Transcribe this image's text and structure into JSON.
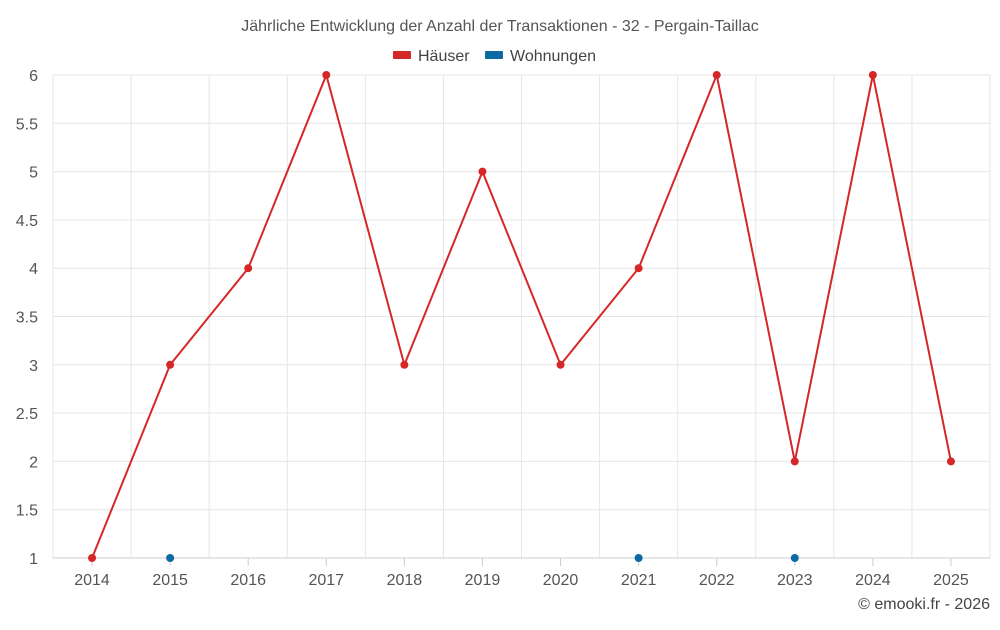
{
  "chart_data": {
    "type": "line",
    "title": "Jährliche Entwicklung der Anzahl der Transaktionen - 32 - Pergain-Taillac",
    "x": [
      "2014",
      "2015",
      "2016",
      "2017",
      "2018",
      "2019",
      "2020",
      "2021",
      "2022",
      "2023",
      "2024",
      "2025"
    ],
    "series": [
      {
        "name": "Häuser",
        "color": "#d62728",
        "values": [
          1,
          3,
          4,
          6,
          3,
          5,
          3,
          4,
          6,
          2,
          6,
          2
        ]
      },
      {
        "name": "Wohnungen",
        "color": "#0b6aa2",
        "values": [
          null,
          1,
          null,
          null,
          null,
          null,
          null,
          1,
          null,
          1,
          null,
          null
        ]
      }
    ],
    "ylim": [
      1,
      6
    ],
    "yticks": [
      "1",
      "1.5",
      "2",
      "2.5",
      "3",
      "3.5",
      "4",
      "4.5",
      "5",
      "5.5",
      "6"
    ],
    "grid": true,
    "legend": "top-center",
    "credit": "© emooki.fr - 2026"
  }
}
